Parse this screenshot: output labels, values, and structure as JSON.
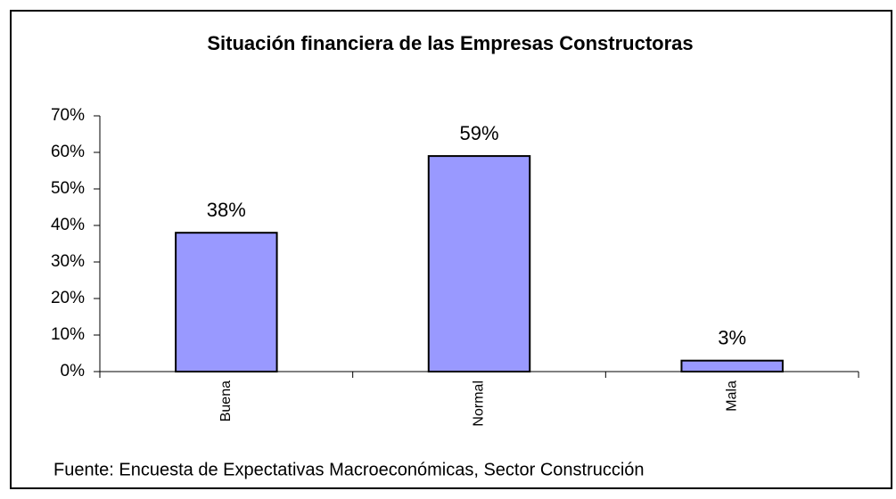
{
  "chart_data": {
    "type": "bar",
    "title": "Situación financiera de las Empresas Constructoras",
    "categories": [
      "Buena",
      "Normal",
      "Mala"
    ],
    "values": [
      38,
      59,
      3
    ],
    "value_labels": [
      "38%",
      "59%",
      "3%"
    ],
    "color": "#9999ff",
    "ylim": [
      0,
      70
    ],
    "yticks": [
      {
        "value": 0,
        "label": "0%"
      },
      {
        "value": 10,
        "label": "10%"
      },
      {
        "value": 20,
        "label": "20%"
      },
      {
        "value": 30,
        "label": "30%"
      },
      {
        "value": 40,
        "label": "40%"
      },
      {
        "value": 50,
        "label": "50%"
      },
      {
        "value": 60,
        "label": "60%"
      },
      {
        "value": 70,
        "label": "70%"
      }
    ],
    "grid": false,
    "source": "Fuente: Encuesta de Expectativas Macroeconómicas, Sector Construcción"
  }
}
